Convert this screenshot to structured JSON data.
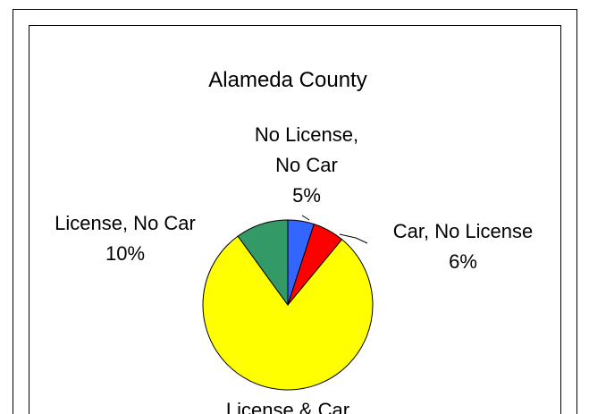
{
  "chart_data": {
    "type": "pie",
    "title": "Alameda County",
    "categories": [
      "No License,\nNo Car",
      "Car, No License",
      "License & Car",
      "License, No Car"
    ],
    "values": [
      5,
      6,
      79,
      10
    ],
    "value_labels": [
      "5%",
      "6%",
      null,
      "10%"
    ],
    "colors": [
      "#3366ff",
      "#ff0000",
      "#ffff00",
      "#339966"
    ]
  }
}
